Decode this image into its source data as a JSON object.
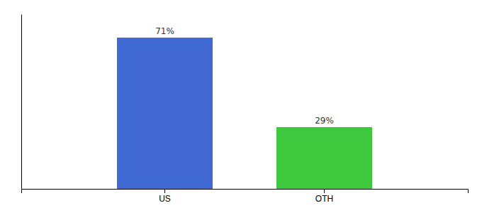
{
  "chart_data": {
    "type": "bar",
    "categories": [
      "US",
      "OTH"
    ],
    "values": [
      71,
      29
    ],
    "value_labels": [
      "71%",
      "29%"
    ],
    "colors": [
      "#4169d4",
      "#3dc83d"
    ],
    "ylim": [
      0,
      82
    ],
    "data_labels": true,
    "tick_labels": "x"
  }
}
